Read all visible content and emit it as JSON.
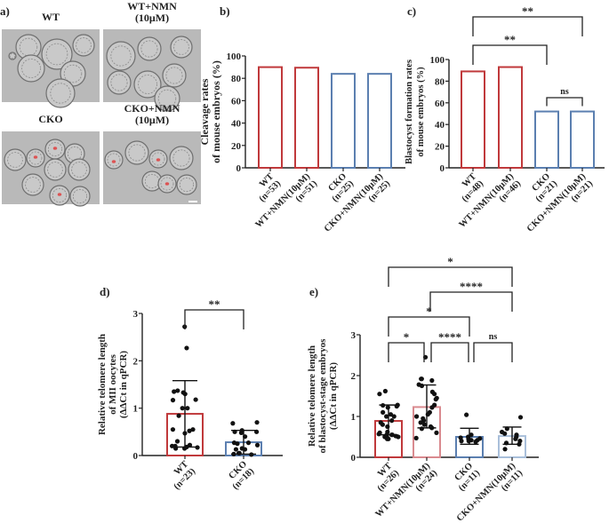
{
  "colors": {
    "wt": "#c0393b",
    "wt_nmn_e": "#d98a8f",
    "cko": "#5b7fb0",
    "cko_nmn_e": "#a9bfda",
    "axis": "#222222"
  },
  "panel_a": {
    "label": "a)",
    "images": [
      {
        "title": [
          "WT"
        ],
        "marked": false
      },
      {
        "title": [
          "WT+NMN",
          "(10μM)"
        ],
        "marked": false
      },
      {
        "title": [
          "CKO"
        ],
        "marked": true
      },
      {
        "title": [
          "CKO+NMN",
          "(10μM)"
        ],
        "marked": true
      }
    ]
  },
  "chart_data": [
    {
      "id": "b",
      "panel_label": "b)",
      "type": "bar",
      "ylabel": [
        "Cleavage rates",
        "of mouse embryos (%)"
      ],
      "ylim": [
        0,
        100
      ],
      "yticks": [
        0,
        20,
        40,
        60,
        80,
        100
      ],
      "categories": [
        [
          "WT",
          "(n=53)"
        ],
        [
          "WT+NMN(10μM)",
          "(n=51)"
        ],
        [
          "CKO",
          "(n=25)"
        ],
        [
          "CKO+NMN(10μM)",
          "(n=25)"
        ]
      ],
      "values": [
        90,
        89.5,
        84,
        84
      ],
      "bar_colors": [
        "#c0393b",
        "#c0393b",
        "#5b7fb0",
        "#5b7fb0"
      ],
      "comparisons": []
    },
    {
      "id": "c",
      "panel_label": "c)",
      "type": "bar",
      "ylabel": [
        "Blastocyst formation rates",
        "of mouse embryos (%)"
      ],
      "ylim": [
        0,
        100
      ],
      "yticks": [
        0,
        20,
        40,
        60,
        80,
        100
      ],
      "categories": [
        [
          "WT",
          "(n=48)"
        ],
        [
          "WT+NMN(10μM)",
          "(n=46)"
        ],
        [
          "CKO",
          "(n=21)"
        ],
        [
          "CKO+NMN(10μM)",
          "(n=21)"
        ]
      ],
      "values": [
        89,
        93,
        52,
        52
      ],
      "bar_colors": [
        "#c0393b",
        "#c0393b",
        "#5b7fb0",
        "#5b7fb0"
      ],
      "comparisons": [
        {
          "from": 0,
          "to": 3,
          "label": "**"
        },
        {
          "from": 0,
          "to": 2,
          "label": "**"
        },
        {
          "from": 2,
          "to": 3,
          "label": "ns"
        }
      ]
    },
    {
      "id": "d",
      "panel_label": "d)",
      "type": "bar",
      "ylabel": [
        "Relative telomere length",
        "of MII oocytes",
        "(ΔΔCt in qPCR)"
      ],
      "ylim": [
        0,
        3
      ],
      "yticks": [
        0,
        1,
        2,
        3
      ],
      "categories": [
        [
          "WT",
          "(n=23)"
        ],
        [
          "CKO",
          "(n=18)"
        ]
      ],
      "values": [
        0.88,
        0.28
      ],
      "error": [
        [
          0.18,
          1.58
        ],
        [
          0.03,
          0.53
        ]
      ],
      "bar_colors": [
        "#c0393b",
        "#5b7fb0"
      ],
      "points": [
        [
          2.72,
          2.27,
          1.35,
          1.37,
          1.33,
          1.3,
          1.17,
          1.18,
          1.0,
          1.0,
          0.84,
          0.55,
          0.52,
          0.55,
          0.47,
          0.3,
          0.22,
          0.2,
          0.18,
          0.15,
          0.15,
          0.2,
          0.17
        ],
        [
          0.7,
          0.68,
          0.53,
          0.5,
          0.5,
          0.48,
          0.4,
          0.27,
          0.25,
          0.27,
          0.22,
          0.15,
          0.13,
          0.13,
          0.05,
          0.03,
          0.02,
          0.05
        ]
      ],
      "comparisons": [
        {
          "from": 0,
          "to": 1,
          "label": "**"
        }
      ]
    },
    {
      "id": "e",
      "panel_label": "e)",
      "type": "bar",
      "ylabel": [
        "Relative telomere length",
        "of blastocyst-stage embryos",
        "(ΔΔCt in qPCR)"
      ],
      "ylim": [
        0,
        3
      ],
      "yticks": [
        0,
        1,
        2,
        3
      ],
      "categories": [
        [
          "WT",
          "(n=26)"
        ],
        [
          "WT+NMN(10μM)",
          "(n=24)"
        ],
        [
          "CKO",
          "(n=11)"
        ],
        [
          "CKO+NMN(10μM)",
          "(n=11)"
        ]
      ],
      "values": [
        0.89,
        1.23,
        0.5,
        0.52
      ],
      "error": [
        [
          0.55,
          1.28
        ],
        [
          0.72,
          1.77
        ],
        [
          0.32,
          0.71
        ],
        [
          0.32,
          0.74
        ]
      ],
      "bar_colors": [
        "#c0393b",
        "#d98a8f",
        "#5b7fb0",
        "#a9bfda"
      ],
      "points": [
        [
          1.62,
          1.55,
          1.28,
          1.27,
          1.25,
          1.22,
          1.1,
          1.05,
          1.0,
          1.0,
          0.9,
          0.85,
          0.8,
          0.75,
          0.6,
          0.57,
          0.55,
          0.55,
          0.55,
          0.5,
          0.5,
          0.48,
          0.45,
          0.45,
          0.52,
          0.62
        ],
        [
          2.45,
          1.92,
          1.92,
          1.88,
          1.78,
          1.75,
          1.6,
          1.55,
          1.45,
          1.42,
          1.28,
          1.22,
          1.1,
          1.05,
          1.0,
          0.95,
          0.9,
          0.85,
          0.8,
          0.75,
          0.72,
          0.7,
          0.6,
          0.47
        ],
        [
          1.04,
          0.55,
          0.5,
          0.48,
          0.46,
          0.45,
          0.42,
          0.42,
          0.4,
          0.4,
          0.38
        ],
        [
          0.98,
          0.7,
          0.62,
          0.58,
          0.55,
          0.5,
          0.45,
          0.4,
          0.35,
          0.32,
          0.2
        ]
      ],
      "comparisons": [
        {
          "from": 0,
          "to": 3,
          "label": "*"
        },
        {
          "from": 1,
          "to": 3,
          "label": "****"
        },
        {
          "from": 0,
          "to": 2,
          "label": "*"
        },
        {
          "from": 0,
          "to": 1,
          "label": "*"
        },
        {
          "from": 1,
          "to": 2,
          "label": "****"
        },
        {
          "from": 2,
          "to": 3,
          "label": "ns"
        }
      ]
    }
  ]
}
